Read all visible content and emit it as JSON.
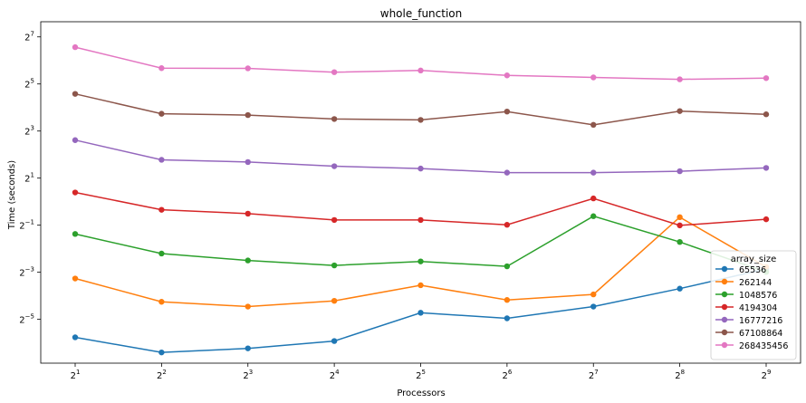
{
  "chart_data": {
    "type": "line",
    "title": "whole_function",
    "xlabel": "Processors",
    "ylabel": "Time (seconds)",
    "x_scale": "log2",
    "y_scale": "log2",
    "x": [
      2,
      4,
      8,
      16,
      32,
      64,
      128,
      256,
      512
    ],
    "x_tick_labels": [
      {
        "base": "2",
        "exp": "1"
      },
      {
        "base": "2",
        "exp": "2"
      },
      {
        "base": "2",
        "exp": "3"
      },
      {
        "base": "2",
        "exp": "4"
      },
      {
        "base": "2",
        "exp": "5"
      },
      {
        "base": "2",
        "exp": "6"
      },
      {
        "base": "2",
        "exp": "7"
      },
      {
        "base": "2",
        "exp": "8"
      },
      {
        "base": "2",
        "exp": "9"
      }
    ],
    "y_ticks": [
      0.03125,
      0.125,
      0.5,
      2,
      8,
      32,
      128
    ],
    "y_tick_labels": [
      {
        "base": "2",
        "exp": "−5"
      },
      {
        "base": "2",
        "exp": "−3"
      },
      {
        "base": "2",
        "exp": "−1"
      },
      {
        "base": "2",
        "exp": "1"
      },
      {
        "base": "2",
        "exp": "3"
      },
      {
        "base": "2",
        "exp": "5"
      },
      {
        "base": "2",
        "exp": "7"
      }
    ],
    "ylim": [
      0.0086,
      200
    ],
    "legend": {
      "title": "array_size",
      "position": "lower-right"
    },
    "grid": false,
    "series": [
      {
        "name": "65536",
        "color": "#1f77b4",
        "values": [
          0.0184,
          0.0118,
          0.0133,
          0.0165,
          0.0379,
          0.0322,
          0.0455,
          0.0772,
          0.138
        ]
      },
      {
        "name": "262144",
        "color": "#ff7f0e",
        "values": [
          0.104,
          0.0524,
          0.0455,
          0.0539,
          0.0853,
          0.0553,
          0.0651,
          0.633,
          0.146
        ]
      },
      {
        "name": "1048576",
        "color": "#2ca02c",
        "values": [
          0.386,
          0.217,
          0.177,
          0.153,
          0.172,
          0.149,
          0.652,
          0.305,
          0.126
        ]
      },
      {
        "name": "4194304",
        "color": "#d62728",
        "values": [
          1.31,
          0.787,
          0.702,
          0.583,
          0.583,
          0.506,
          1.1,
          0.497,
          0.595
        ]
      },
      {
        "name": "16777216",
        "color": "#9467bd",
        "values": [
          6.12,
          3.43,
          3.21,
          2.84,
          2.65,
          2.35,
          2.35,
          2.45,
          2.7
        ]
      },
      {
        "name": "67108864",
        "color": "#8c564b",
        "values": [
          23.9,
          13.3,
          12.8,
          11.4,
          11.1,
          14.2,
          9.6,
          14.4,
          13.1
        ]
      },
      {
        "name": "268435456",
        "color": "#e377c2",
        "values": [
          94.5,
          51.0,
          50.7,
          45.3,
          47.6,
          41.2,
          38.8,
          36.7,
          38.0
        ]
      }
    ]
  }
}
